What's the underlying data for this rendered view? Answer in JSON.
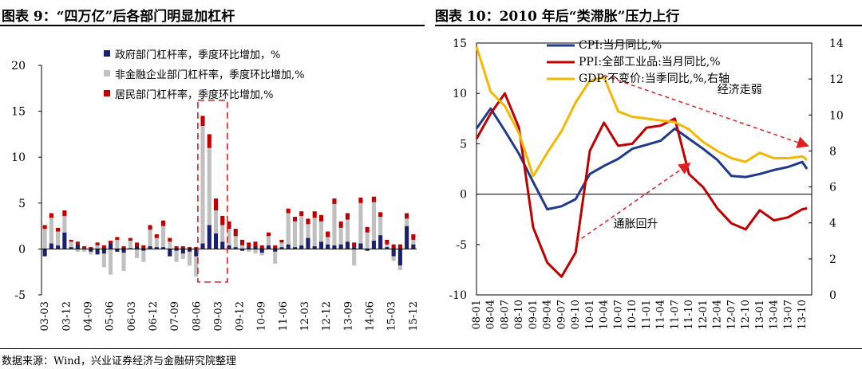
{
  "left": {
    "title": "图表 9：“四万亿”后各部门明显加杠杆",
    "chart_data": {
      "type": "bar",
      "stacked": true,
      "ylim": [
        -5,
        20
      ],
      "yticks": [
        "-5",
        "0",
        "5",
        "10",
        "15",
        "20"
      ],
      "xtick_labels": [
        "03-03",
        "03-12",
        "04-09",
        "05-06",
        "06-03",
        "06-12",
        "07-09",
        "08-06",
        "09-03",
        "09-12",
        "10-09",
        "11-06",
        "12-03",
        "12-12",
        "13-09",
        "14-06",
        "15-03",
        "15-12"
      ],
      "highlight": {
        "from_index": 24,
        "to_index": 27,
        "note": "dashed box over 2009"
      },
      "series": [
        {
          "name": "政府部门杠杆率，季度环比增加，%",
          "color": "#1a1f6e",
          "values": [
            -0.8,
            0.6,
            0.4,
            1.8,
            0.2,
            0.5,
            0.1,
            -0.3,
            -0.6,
            -0.5,
            0.6,
            -0.3,
            -0.4,
            0.1,
            0.3,
            -0.2,
            0.3,
            0.2,
            0.2,
            -0.8,
            -0.2,
            -0.5,
            -0.3,
            -0.8,
            0.6,
            2.6,
            1.7,
            0.8,
            0.4,
            0.2,
            -0.2,
            0.2,
            0.3,
            -0.4,
            0.4,
            -0.3,
            0.2,
            0.5,
            0.2,
            0.4,
            1.2,
            0.3,
            0.8,
            0.5,
            0.4,
            0.5,
            0.8,
            0.2,
            0.6,
            -0.2,
            0.9,
            1.5,
            0.2,
            -0.8,
            -1.8,
            2.5,
            0.5
          ]
        },
        {
          "name": "非金融企业部门杠杆率，季度环比增加,%",
          "color": "#c0c0c0",
          "values": [
            2.2,
            2.8,
            1.5,
            1.8,
            0.6,
            -0.3,
            -0.3,
            -0.3,
            0.4,
            -1.5,
            -2.8,
            1.0,
            -2.0,
            0.8,
            -1.0,
            -1.2,
            1.8,
            1.0,
            2.3,
            0.8,
            -1.2,
            -0.6,
            -1.5,
            -2.2,
            12.8,
            8.4,
            2.5,
            1.8,
            1.8,
            1.2,
            0.4,
            -0.3,
            -0.5,
            -0.3,
            1.0,
            -1.3,
            0.5,
            3.4,
            2.8,
            3.2,
            1.5,
            3.1,
            2.2,
            0.8,
            4.5,
            1.8,
            2.4,
            -1.8,
            4.4,
            1.8,
            4.2,
            2.0,
            0.3,
            -0.5,
            -0.5,
            0.8,
            0.5
          ]
        },
        {
          "name": "居民部门杠杆率，季度环比增加,%",
          "color": "#c00000",
          "values": [
            0.4,
            0.5,
            0.4,
            0.6,
            0.2,
            0.3,
            0.2,
            0.2,
            0.3,
            0.4,
            0.3,
            0.3,
            0.3,
            0.3,
            0.4,
            0.4,
            0.5,
            0.4,
            0.6,
            0.4,
            0.3,
            0.3,
            0.2,
            0.2,
            1.1,
            1.5,
            1.3,
            1.0,
            0.8,
            0.8,
            0.6,
            0.5,
            0.5,
            0.4,
            0.4,
            0.4,
            0.3,
            0.5,
            0.5,
            0.5,
            0.6,
            0.7,
            0.7,
            0.6,
            0.6,
            0.7,
            0.7,
            0.5,
            0.6,
            0.6,
            0.6,
            0.5,
            0.5,
            0.5,
            0.5,
            0.6,
            0.6
          ]
        }
      ]
    }
  },
  "right": {
    "title": "图表 10：2010 年后“类滞胀”压力上行",
    "chart_data": {
      "type": "line",
      "ylim_left": [
        -10,
        15
      ],
      "ylim_right": [
        0,
        14
      ],
      "yticks_left": [
        "-10",
        "-5",
        "0",
        "5",
        "10",
        "15"
      ],
      "yticks_right": [
        "0",
        "2",
        "4",
        "6",
        "8",
        "10",
        "12",
        "14"
      ],
      "xtick_labels": [
        "08-01",
        "08-04",
        "08-07",
        "08-10",
        "09-01",
        "09-04",
        "09-07",
        "09-10",
        "10-01",
        "10-04",
        "10-07",
        "10-10",
        "11-01",
        "11-04",
        "11-07",
        "11-10",
        "12-01",
        "12-04",
        "12-07",
        "12-10",
        "13-01",
        "13-04",
        "13-07",
        "13-10"
      ],
      "x_start_month": 0,
      "series": [
        {
          "name": "CPI:当月同比,%",
          "color": "#1f3a8a",
          "axis": "left",
          "months": [
            0,
            3,
            6,
            9,
            12,
            15,
            18,
            21,
            24,
            27,
            30,
            33,
            36,
            39,
            42,
            45,
            48,
            51,
            54,
            57,
            60,
            63,
            66,
            69,
            70
          ],
          "values": [
            6.5,
            8.5,
            6.3,
            4.0,
            1.2,
            -1.5,
            -1.2,
            -0.5,
            2.0,
            2.8,
            3.5,
            4.5,
            4.9,
            5.3,
            6.5,
            5.5,
            4.5,
            3.4,
            1.8,
            1.7,
            2.0,
            2.4,
            2.7,
            3.2,
            2.5
          ]
        },
        {
          "name": "PPI:全部工业品:当月同比,%",
          "color": "#c00000",
          "axis": "left",
          "months": [
            0,
            3,
            6,
            9,
            12,
            15,
            18,
            21,
            24,
            27,
            30,
            33,
            36,
            39,
            42,
            45,
            48,
            51,
            54,
            57,
            60,
            63,
            66,
            69,
            70
          ],
          "values": [
            5.5,
            8.0,
            10.0,
            6.6,
            -3.3,
            -6.8,
            -8.2,
            -5.8,
            4.3,
            7.1,
            4.8,
            5.0,
            6.6,
            6.8,
            7.5,
            2.0,
            0.7,
            -1.4,
            -2.9,
            -3.5,
            -1.6,
            -2.6,
            -2.3,
            -1.5,
            -1.4
          ]
        },
        {
          "name": "GDP:不变价:当季同比,%,右轴",
          "color": "#f5b800",
          "axis": "right",
          "months": [
            0,
            3,
            6,
            9,
            12,
            15,
            18,
            21,
            24,
            27,
            30,
            33,
            36,
            39,
            42,
            45,
            48,
            51,
            54,
            57,
            60,
            63,
            66,
            69,
            70
          ],
          "values": [
            13.8,
            11.3,
            10.5,
            9.0,
            6.6,
            7.9,
            9.1,
            10.7,
            11.9,
            12.1,
            10.2,
            9.9,
            9.8,
            9.7,
            9.6,
            9.2,
            8.5,
            8.0,
            7.6,
            7.4,
            7.9,
            7.6,
            7.6,
            7.7,
            7.5
          ]
        }
      ],
      "annotations": [
        {
          "text": "经济走弱",
          "color": "#000000"
        },
        {
          "text": "通胀回升",
          "color": "#000000"
        }
      ]
    }
  },
  "source": "数据来源：Wind，兴业证券经济与金融研究院整理"
}
